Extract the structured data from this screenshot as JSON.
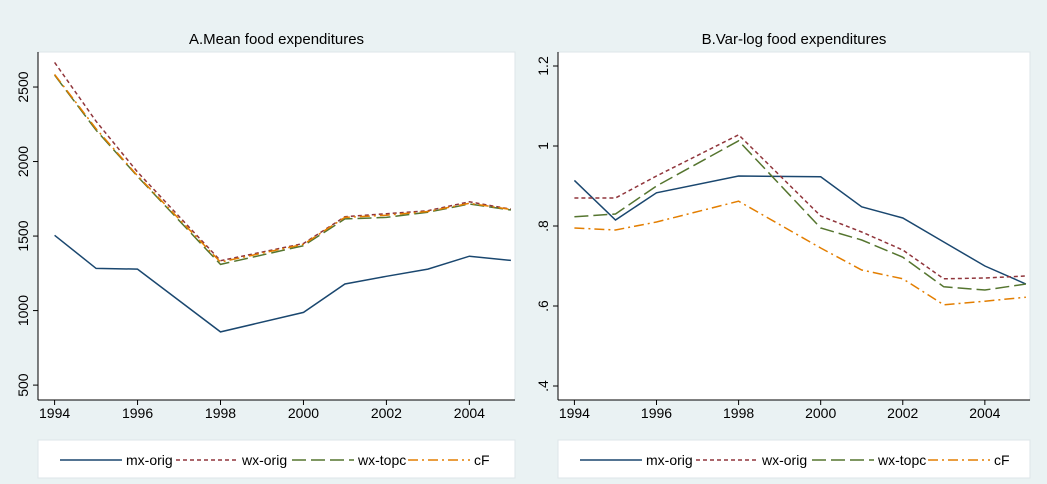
{
  "chart_data": [
    {
      "type": "line",
      "title": "A.Mean food expenditures",
      "x": [
        1994,
        1995,
        1996,
        1998,
        2000,
        2001,
        2002,
        2003,
        2004,
        2005
      ],
      "xlim": [
        1993.6,
        2005.1
      ],
      "xticks": [
        1994,
        1996,
        1998,
        2000,
        2002,
        2004
      ],
      "ylim": [
        400,
        2735
      ],
      "yticks": [
        500,
        1000,
        1500,
        2000,
        2500
      ],
      "series": [
        {
          "name": "mx-orig",
          "color": "#1a476f",
          "dash": "solid",
          "values": [
            1505,
            1283,
            1278,
            857,
            988,
            1178,
            1230,
            1278,
            1365,
            1337
          ]
        },
        {
          "name": "wx-orig",
          "color": "#90353b",
          "dash": "short",
          "values": [
            2665,
            2270,
            1930,
            1335,
            1450,
            1630,
            1650,
            1670,
            1730,
            1680
          ]
        },
        {
          "name": "wx-topc",
          "color": "#55752f",
          "dash": "long",
          "values": [
            2580,
            2210,
            1900,
            1310,
            1435,
            1615,
            1625,
            1660,
            1715,
            1675
          ]
        },
        {
          "name": "cF",
          "color": "#e37e00",
          "dash": "dashdot",
          "values": [
            2585,
            2220,
            1905,
            1325,
            1445,
            1625,
            1640,
            1665,
            1720,
            1678
          ]
        }
      ]
    },
    {
      "type": "line",
      "title": "B.Var-log food expenditures",
      "x": [
        1994,
        1995,
        1996,
        1998,
        2000,
        2001,
        2002,
        2003,
        2004,
        2005
      ],
      "xlim": [
        1993.6,
        2005.1
      ],
      "xticks": [
        1994,
        1996,
        1998,
        2000,
        2002,
        2004
      ],
      "ylim": [
        0.365,
        1.235
      ],
      "yticks": [
        {
          "value": 0.4,
          "label": ".4"
        },
        {
          "value": 0.6,
          "label": ".6"
        },
        {
          "value": 0.8,
          "label": ".8"
        },
        1,
        1.2
      ],
      "series": [
        {
          "name": "mx-orig",
          "color": "#1a476f",
          "dash": "solid",
          "values": [
            0.914,
            0.815,
            0.883,
            0.925,
            0.923,
            0.848,
            0.82,
            0.76,
            0.7,
            0.655
          ]
        },
        {
          "name": "wx-orig",
          "color": "#90353b",
          "dash": "short",
          "values": [
            0.87,
            0.87,
            0.925,
            1.028,
            0.825,
            0.785,
            0.74,
            0.668,
            0.67,
            0.675
          ]
        },
        {
          "name": "wx-topc",
          "color": "#55752f",
          "dash": "long",
          "values": [
            0.823,
            0.83,
            0.9,
            1.013,
            0.795,
            0.765,
            0.722,
            0.648,
            0.64,
            0.655
          ]
        },
        {
          "name": "cF",
          "color": "#e37e00",
          "dash": "dashdot",
          "values": [
            0.795,
            0.79,
            0.81,
            0.862,
            0.745,
            0.69,
            0.668,
            0.603,
            0.612,
            0.622
          ]
        }
      ]
    }
  ]
}
